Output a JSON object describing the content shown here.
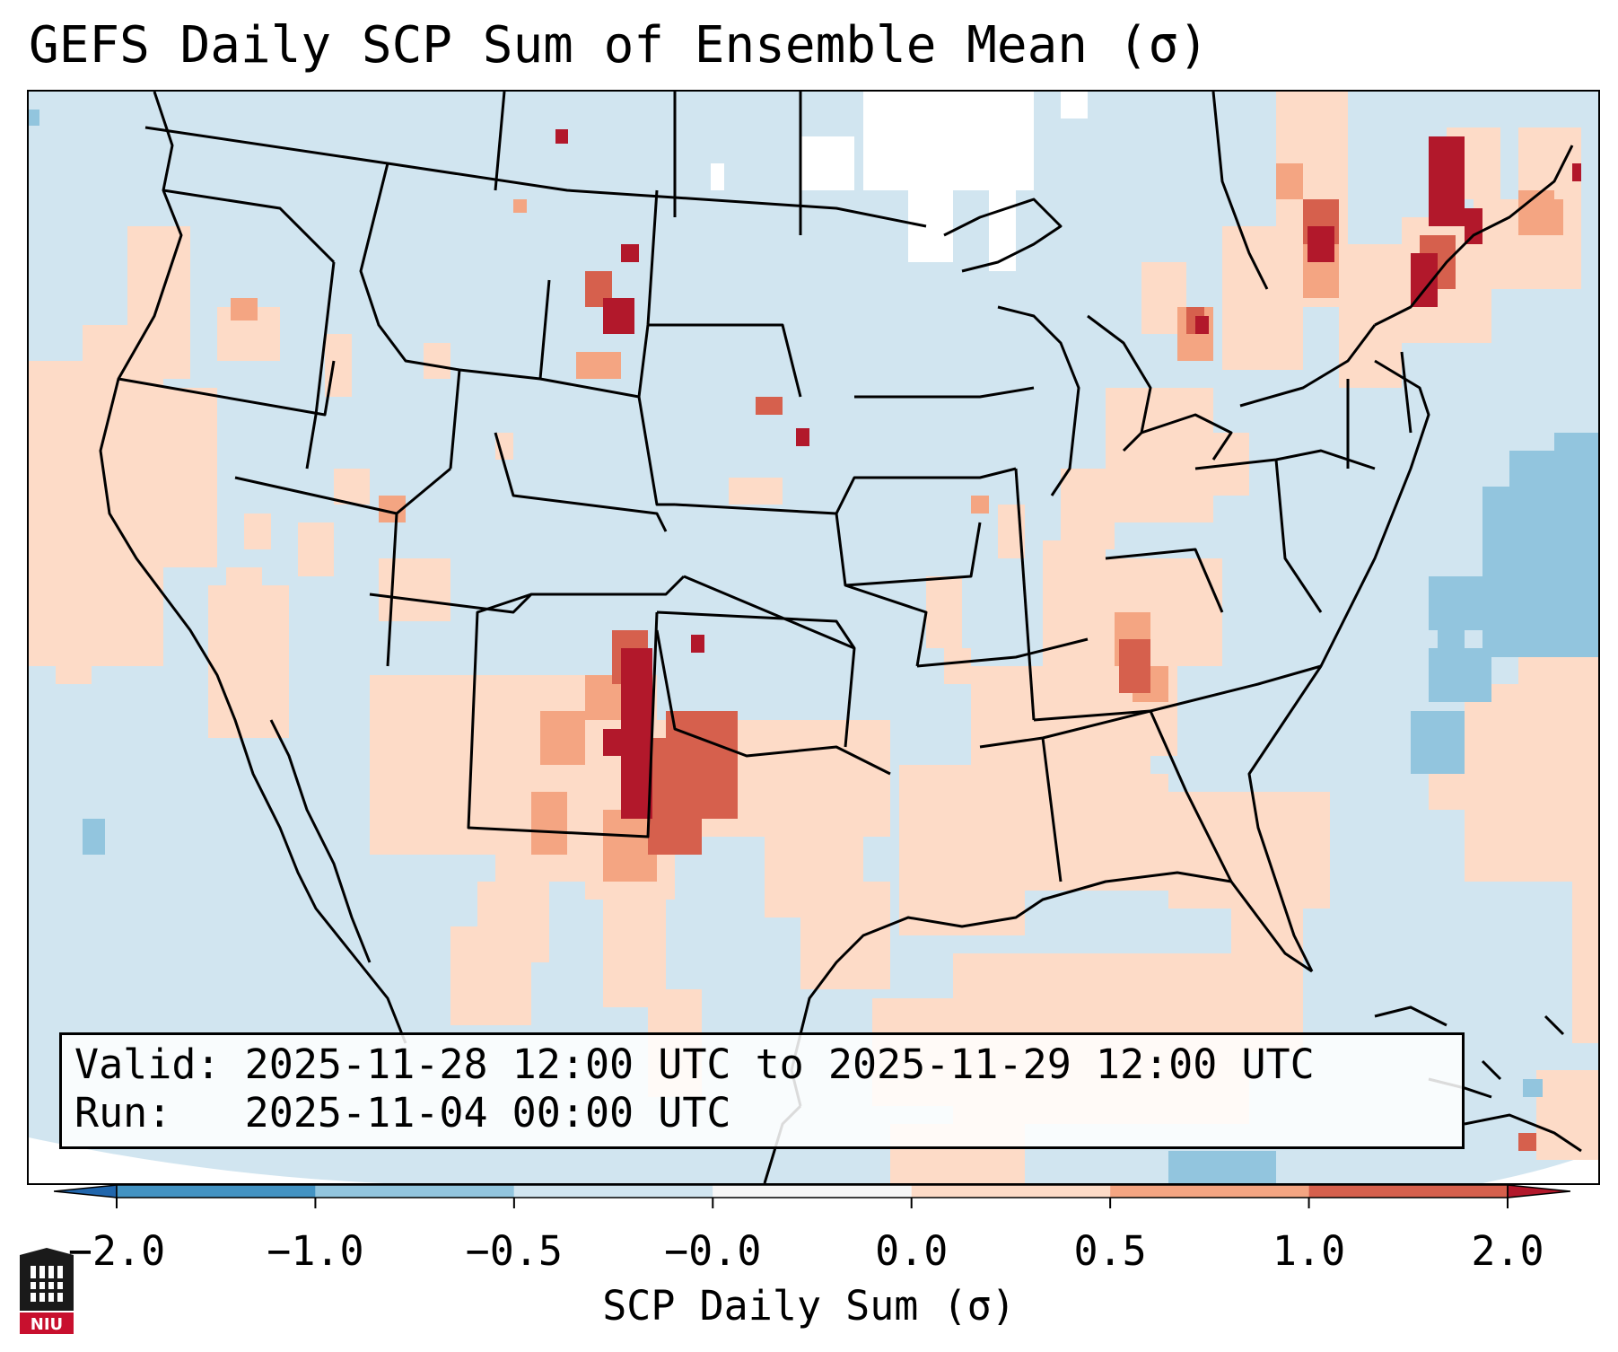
{
  "title": "GEFS Daily SCP Sum of Ensemble Mean (σ)",
  "info": {
    "valid_label": "Valid:",
    "valid_value": "2025-11-28 12:00 UTC to 2025-11-29 12:00 UTC",
    "run_label": "Run:",
    "run_value": "2025-11-04 00:00 UTC"
  },
  "colorbar": {
    "label": "SCP Daily Sum (σ)",
    "ticks": [
      "−2.0",
      "−1.0",
      "−0.5",
      "−0.0",
      "0.0",
      "0.5",
      "1.0",
      "2.0"
    ],
    "bins": [
      {
        "from": -2.0,
        "to": -1.0,
        "color": "#4393c3"
      },
      {
        "from": -1.0,
        "to": -0.5,
        "color": "#92c5de"
      },
      {
        "from": -0.5,
        "to": -0.0,
        "color": "#d1e5f0"
      },
      {
        "from": -0.0,
        "to": 0.0,
        "color": "#f7f7f7"
      },
      {
        "from": 0.0,
        "to": 0.5,
        "color": "#fddbc7"
      },
      {
        "from": 0.5,
        "to": 1.0,
        "color": "#f4a582"
      },
      {
        "from": 1.0,
        "to": 2.0,
        "color": "#d6604d"
      }
    ],
    "under_color": "#2166ac",
    "over_color": "#b2182b"
  },
  "field": {
    "background_level": "-0.5 to -0.0",
    "background_color": "#d1e5f0",
    "hotspots": [
      {
        "region": "Texas Panhandle / western Oklahoma",
        "level": "1.0 to 2.0",
        "color": "#d6604d"
      },
      {
        "region": "Eastern New Mexico",
        "level": "> 2.0",
        "color": "#b2182b"
      },
      {
        "region": "Southern Quebec",
        "level": "> 2.0",
        "color": "#b2182b"
      },
      {
        "region": "Northern Ontario",
        "level": "> 2.0",
        "color": "#b2182b"
      },
      {
        "region": "Eastern Montana",
        "level": "> 2.0",
        "color": "#b2182b"
      },
      {
        "region": "Nebraska / South Dakota border",
        "level": "> 2.0",
        "color": "#b2182b"
      },
      {
        "region": "Middle Tennessee / Kentucky",
        "level": "0.5 to 1.0",
        "color": "#f4a582"
      },
      {
        "region": "Western Atlantic",
        "level": "-1.0 to -0.5",
        "color": "#92c5de"
      }
    ]
  },
  "logo": {
    "text": "NIU"
  }
}
